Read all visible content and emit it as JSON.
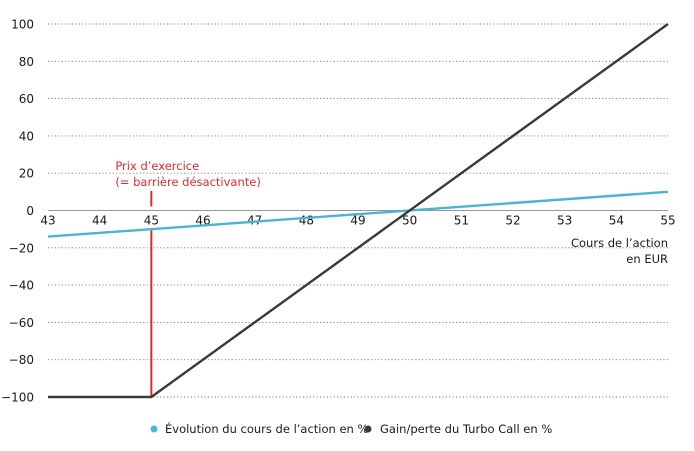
{
  "chart_data": {
    "type": "line",
    "xlim": [
      43,
      55
    ],
    "ylim": [
      -100,
      100
    ],
    "x_ticks": [
      43,
      44,
      45,
      46,
      47,
      48,
      49,
      50,
      51,
      52,
      53,
      54,
      55
    ],
    "y_ticks": [
      100,
      80,
      60,
      40,
      20,
      0,
      -20,
      -40,
      -60,
      -80,
      -100
    ],
    "x_tick_labels": [
      "43",
      "44",
      "45",
      "46",
      "47",
      "48",
      "49",
      "50",
      "51",
      "52",
      "53",
      "54",
      "55"
    ],
    "y_tick_labels": [
      "100",
      "80",
      "60",
      "40",
      "20",
      "0",
      "−20",
      "−40",
      "−60",
      "−80",
      "−100"
    ],
    "xlabel_lines": [
      "Cours de l’action",
      "en EUR"
    ],
    "grid": "horizontal dotted",
    "legend_position": "bottom-center",
    "series": [
      {
        "name": "Évolution du cours de l’action en %",
        "color": "#4bb3d3",
        "x": [
          43,
          55
        ],
        "y": [
          -14,
          10
        ]
      },
      {
        "name": "Gain/perte du Turbo Call en %",
        "color": "#3a3a3a",
        "x": [
          43,
          45,
          55
        ],
        "y": [
          -100,
          -100,
          100
        ]
      }
    ],
    "annotation": {
      "lines": [
        "Prix d’exercice",
        "(= barrière désactivante)"
      ],
      "x": 45,
      "color": "#d32f2f"
    }
  }
}
